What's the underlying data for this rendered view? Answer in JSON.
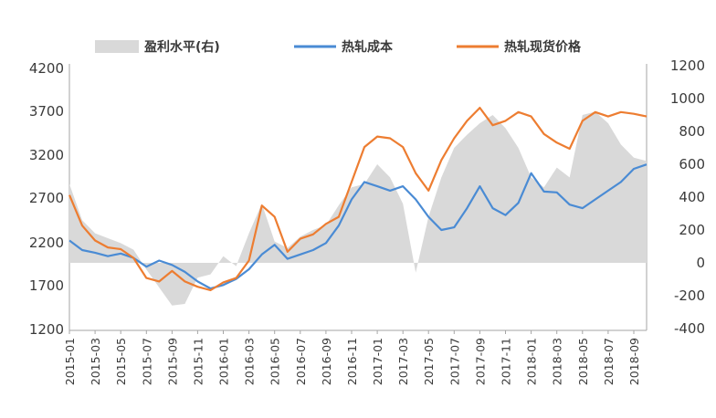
{
  "chart_data": {
    "type": "line",
    "title": "",
    "legend_position": "top",
    "grid": false,
    "x_labels": [
      "2015-01",
      "2015-03",
      "2015-05",
      "2015-07",
      "2015-09",
      "2015-11",
      "2016-01",
      "2016-03",
      "2016-05",
      "2016-07",
      "2016-09",
      "2016-11",
      "2017-01",
      "2017-03",
      "2017-05",
      "2017-07",
      "2017-09",
      "2017-11",
      "2018-01",
      "2018-03",
      "2018-05",
      "2018-07",
      "2018-09"
    ],
    "x_range": [
      "2015-01",
      "2018-10"
    ],
    "y_left": {
      "ticks": [
        "4200",
        "3700",
        "3200",
        "2700",
        "2200",
        "1700",
        "1200"
      ],
      "range": [
        1200,
        4200
      ]
    },
    "y_right": {
      "ticks": [
        "1200",
        "1000",
        "800",
        "600",
        "400",
        "200",
        "0",
        "-200",
        "-400"
      ],
      "range": [
        -400,
        1200
      ]
    },
    "colors": {
      "margin": "#d9d9d9",
      "cost": "#4a8bd4",
      "price": "#ed7d31",
      "axis": "#a6a6a6"
    },
    "series": [
      {
        "name": "盈利水平(右)",
        "type": "area",
        "axis": "right",
        "x": [
          "2015-01",
          "2015-02",
          "2015-03",
          "2015-04",
          "2015-05",
          "2015-06",
          "2015-07",
          "2015-08",
          "2015-09",
          "2015-10",
          "2015-11",
          "2015-12",
          "2016-01",
          "2016-02",
          "2016-03",
          "2016-04",
          "2016-05",
          "2016-06",
          "2016-07",
          "2016-08",
          "2016-09",
          "2016-10",
          "2016-11",
          "2016-12",
          "2017-01",
          "2017-02",
          "2017-03",
          "2017-04",
          "2017-05",
          "2017-06",
          "2017-07",
          "2017-08",
          "2017-09",
          "2017-10",
          "2017-11",
          "2017-12",
          "2018-01",
          "2018-02",
          "2018-03",
          "2018-04",
          "2018-05",
          "2018-06",
          "2018-07",
          "2018-08",
          "2018-09",
          "2018-10"
        ],
        "values": [
          480,
          260,
          180,
          150,
          120,
          80,
          -40,
          -150,
          -260,
          -250,
          -90,
          -70,
          40,
          -20,
          180,
          360,
          130,
          90,
          160,
          200,
          230,
          350,
          460,
          480,
          600,
          520,
          360,
          -60,
          280,
          520,
          700,
          780,
          850,
          900,
          820,
          700,
          520,
          460,
          580,
          520,
          900,
          920,
          850,
          720,
          640,
          620
        ]
      },
      {
        "name": "热轧成本",
        "type": "line",
        "axis": "left",
        "x": [
          "2015-01",
          "2015-02",
          "2015-03",
          "2015-04",
          "2015-05",
          "2015-06",
          "2015-07",
          "2015-08",
          "2015-09",
          "2015-10",
          "2015-11",
          "2015-12",
          "2016-01",
          "2016-02",
          "2016-03",
          "2016-04",
          "2016-05",
          "2016-06",
          "2016-07",
          "2016-08",
          "2016-09",
          "2016-10",
          "2016-11",
          "2016-12",
          "2017-01",
          "2017-02",
          "2017-03",
          "2017-04",
          "2017-05",
          "2017-06",
          "2017-07",
          "2017-08",
          "2017-09",
          "2017-10",
          "2017-11",
          "2017-12",
          "2018-01",
          "2018-02",
          "2018-03",
          "2018-04",
          "2018-05",
          "2018-06",
          "2018-07",
          "2018-08",
          "2018-09",
          "2018-10"
        ],
        "values": [
          2230,
          2120,
          2090,
          2050,
          2080,
          2030,
          1930,
          2000,
          1950,
          1870,
          1760,
          1680,
          1720,
          1790,
          1900,
          2070,
          2180,
          2020,
          2070,
          2120,
          2200,
          2400,
          2700,
          2900,
          2850,
          2800,
          2850,
          2700,
          2500,
          2350,
          2380,
          2600,
          2850,
          2600,
          2520,
          2660,
          3000,
          2790,
          2780,
          2640,
          2600,
          2700,
          2800,
          2900,
          3050,
          3100
        ]
      },
      {
        "name": "热轧现货价格",
        "type": "line",
        "axis": "left",
        "x": [
          "2015-01",
          "2015-02",
          "2015-03",
          "2015-04",
          "2015-05",
          "2015-06",
          "2015-07",
          "2015-08",
          "2015-09",
          "2015-10",
          "2015-11",
          "2015-12",
          "2016-01",
          "2016-02",
          "2016-03",
          "2016-04",
          "2016-05",
          "2016-06",
          "2016-07",
          "2016-08",
          "2016-09",
          "2016-10",
          "2016-11",
          "2016-12",
          "2017-01",
          "2017-02",
          "2017-03",
          "2017-04",
          "2017-05",
          "2017-06",
          "2017-07",
          "2017-08",
          "2017-09",
          "2017-10",
          "2017-11",
          "2017-12",
          "2018-01",
          "2018-02",
          "2018-03",
          "2018-04",
          "2018-05",
          "2018-06",
          "2018-07",
          "2018-08",
          "2018-09",
          "2018-10"
        ],
        "values": [
          2750,
          2400,
          2230,
          2150,
          2130,
          2030,
          1800,
          1760,
          1880,
          1760,
          1700,
          1660,
          1750,
          1800,
          2000,
          2630,
          2500,
          2100,
          2250,
          2300,
          2420,
          2500,
          2900,
          3300,
          3420,
          3400,
          3300,
          3000,
          2800,
          3150,
          3400,
          3600,
          3750,
          3550,
          3600,
          3700,
          3650,
          3450,
          3350,
          3280,
          3600,
          3700,
          3650,
          3700,
          3680,
          3650
        ]
      }
    ]
  }
}
